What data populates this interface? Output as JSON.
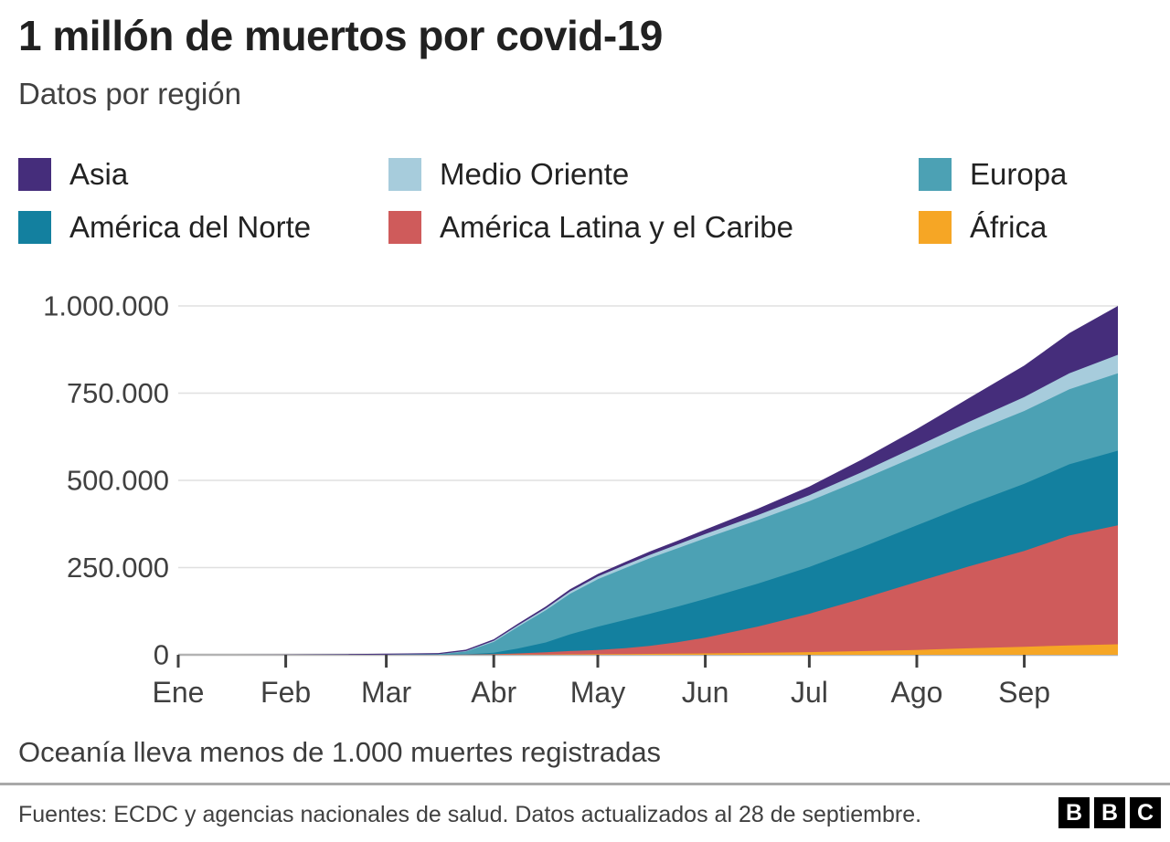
{
  "header": {
    "title": "1 millón de muertos por covid-19",
    "subtitle": "Datos por región"
  },
  "legend": {
    "items": [
      {
        "label": "Asia",
        "color": "#452d7b"
      },
      {
        "label": "Medio Oriente",
        "color": "#a7ccdc"
      },
      {
        "label": "Europa",
        "color": "#4ca1b4"
      },
      {
        "label": "América del Norte",
        "color": "#13809f"
      },
      {
        "label": "América Latina y el Caribe",
        "color": "#cf5b5b"
      },
      {
        "label": "África",
        "color": "#f6a625"
      }
    ]
  },
  "chart_data": {
    "type": "area",
    "title": "1 millón de muertos por covid-19",
    "subtitle": "Datos por región",
    "stacking": "stacked areas, bottom to top as listed in series",
    "x_unit": "days since 1 Jan 2020 (axis spans Ene–Sep, ends 28 de septiembre)",
    "ylim": [
      0,
      1000000
    ],
    "grid": "horizontal gridlines at y ticks",
    "legend_position": "top, two rows of three",
    "x_days": [
      0,
      31,
      60,
      75,
      83,
      91,
      98,
      106,
      113,
      121,
      129,
      136,
      144,
      152,
      167,
      182,
      197,
      213,
      228,
      244,
      257,
      271
    ],
    "x_ticks": [
      {
        "label": "Ene",
        "day": 0
      },
      {
        "label": "Feb",
        "day": 31
      },
      {
        "label": "Mar",
        "day": 60
      },
      {
        "label": "Abr",
        "day": 91
      },
      {
        "label": "May",
        "day": 121
      },
      {
        "label": "Jun",
        "day": 152
      },
      {
        "label": "Jul",
        "day": 182
      },
      {
        "label": "Ago",
        "day": 213
      },
      {
        "label": "Sep",
        "day": 244
      }
    ],
    "y_ticks": [
      {
        "label": "0",
        "value": 0
      },
      {
        "label": "250.000",
        "value": 250000
      },
      {
        "label": "500.000",
        "value": 500000
      },
      {
        "label": "750.000",
        "value": 750000
      },
      {
        "label": "1.000.000",
        "value": 1000000
      }
    ],
    "series": [
      {
        "name": "África",
        "color": "#f6a625",
        "values": [
          0,
          0,
          0,
          50,
          100,
          200,
          500,
          900,
          1200,
          1500,
          2000,
          2600,
          3200,
          4000,
          5500,
          7500,
          10500,
          14000,
          18500,
          23000,
          27000,
          30000
        ]
      },
      {
        "name": "América Latina y el Caribe",
        "color": "#cf5b5b",
        "values": [
          0,
          0,
          0,
          50,
          400,
          1300,
          3500,
          6500,
          9500,
          12000,
          17000,
          23000,
          33000,
          45000,
          75000,
          110000,
          150000,
          195000,
          235000,
          275000,
          315000,
          341000
        ]
      },
      {
        "name": "América del Norte",
        "color": "#13809f",
        "values": [
          0,
          0,
          0,
          50,
          800,
          4500,
          14000,
          28000,
          48000,
          67000,
          81000,
          92000,
          102000,
          111000,
          123000,
          134000,
          147000,
          162000,
          177000,
          192000,
          204000,
          214000
        ]
      },
      {
        "name": "Europa",
        "color": "#4ca1b4",
        "values": [
          0,
          0,
          50,
          1200,
          8000,
          31000,
          62000,
          92000,
          116000,
          136000,
          149000,
          159000,
          167000,
          174000,
          182000,
          189000,
          194000,
          199000,
          204000,
          209000,
          215000,
          222000
        ]
      },
      {
        "name": "Medio Oriente",
        "color": "#a7ccdc",
        "values": [
          0,
          0,
          100,
          300,
          1500,
          3200,
          4200,
          5200,
          6500,
          7800,
          8800,
          9800,
          10800,
          12000,
          14500,
          17000,
          21500,
          27000,
          33000,
          40000,
          46000,
          53000
        ]
      },
      {
        "name": "Asia",
        "color": "#452d7b",
        "values": [
          0,
          260,
          2900,
          3200,
          3800,
          4400,
          5100,
          5800,
          6600,
          7400,
          8400,
          9600,
          11000,
          13000,
          18000,
          25000,
          36000,
          50000,
          68000,
          90000,
          115000,
          140000
        ]
      }
    ]
  },
  "footnote": "Oceanía lleva menos de 1.000 muertes registradas",
  "footer": {
    "source": "Fuentes: ECDC y agencias nacionales de salud. Datos actualizados al 28 de septiembre.",
    "logo_letters": [
      "B",
      "B",
      "C"
    ]
  },
  "colors": {
    "gridline": "#e0e0e0",
    "axis_line": "#b3b3b3",
    "tick": "#404040",
    "axis_text": "#404040",
    "title_text": "#212121"
  }
}
